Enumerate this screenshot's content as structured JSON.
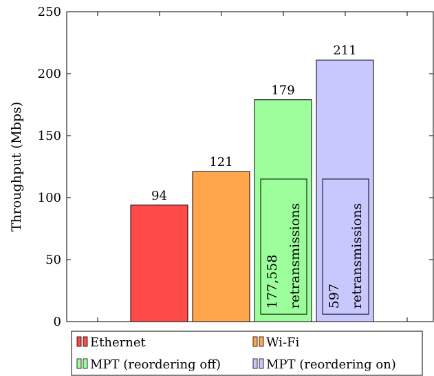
{
  "chart_data": {
    "type": "bar",
    "title": "",
    "xlabel": "",
    "ylabel": "Throughput (Mbps)",
    "ylim": [
      0,
      250
    ],
    "yticks": [
      0,
      50,
      100,
      150,
      200,
      250
    ],
    "grid": false,
    "legend_position": "bottom",
    "categories": [
      "Ethernet",
      "Wi-Fi",
      "MPT (reordering off)",
      "MPT (reordering on)"
    ],
    "values": [
      94,
      121,
      179,
      211
    ],
    "data_labels": [
      "94",
      "121",
      "179",
      "211"
    ],
    "colors": [
      "#ff4a4a",
      "#ffa64d",
      "#9cff9c",
      "#c8c8ff"
    ],
    "annotations": [
      {
        "series": "MPT (reordering off)",
        "lines": [
          "177,558",
          "retransmissions"
        ]
      },
      {
        "series": "MPT (reordering on)",
        "lines": [
          "597",
          "retransmissions"
        ]
      }
    ]
  }
}
